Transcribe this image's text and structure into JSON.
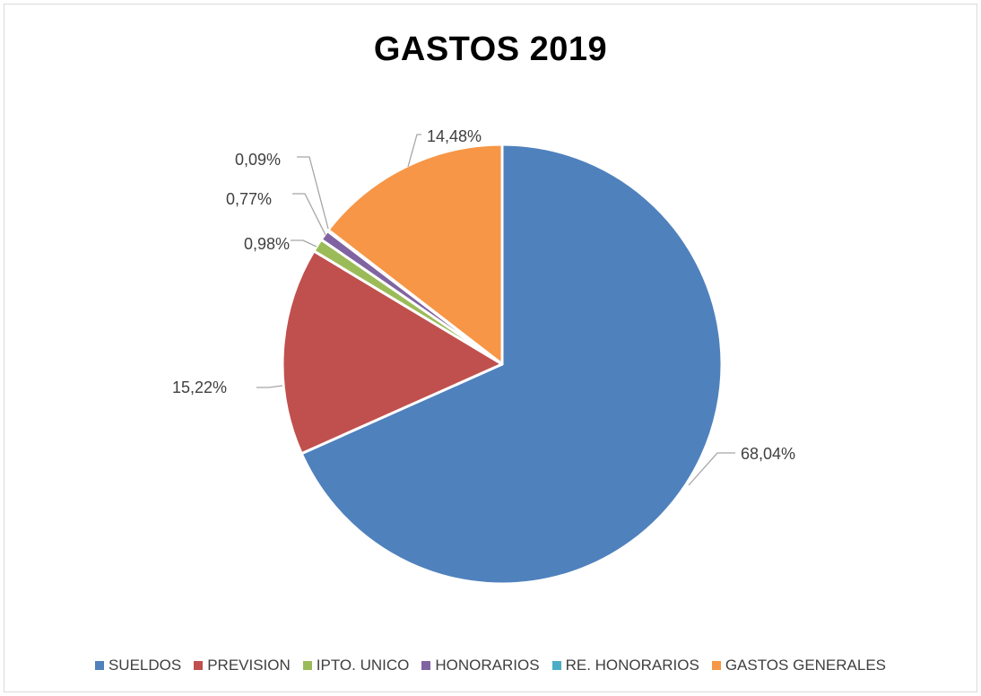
{
  "chart_data": {
    "type": "pie",
    "title": "GASTOS 2019",
    "legend_position": "bottom",
    "slices": [
      {
        "name": "SUELDOS",
        "value": 68.04,
        "label": "68,04%",
        "color": "#4F81BD"
      },
      {
        "name": "PREVISION",
        "value": 15.22,
        "label": "15,22%",
        "color": "#C0504D"
      },
      {
        "name": "IPTO. UNICO",
        "value": 0.98,
        "label": "0,98%",
        "color": "#9BBB59"
      },
      {
        "name": "HONORARIOS",
        "value": 0.77,
        "label": "0,77%",
        "color": "#8064A2"
      },
      {
        "name": "RE. HONORARIOS",
        "value": 0.09,
        "label": "0,09%",
        "color": "#4BACC6"
      },
      {
        "name": "GASTOS GENERALES",
        "value": 14.48,
        "label": "14,48%",
        "color": "#F79646"
      }
    ]
  }
}
